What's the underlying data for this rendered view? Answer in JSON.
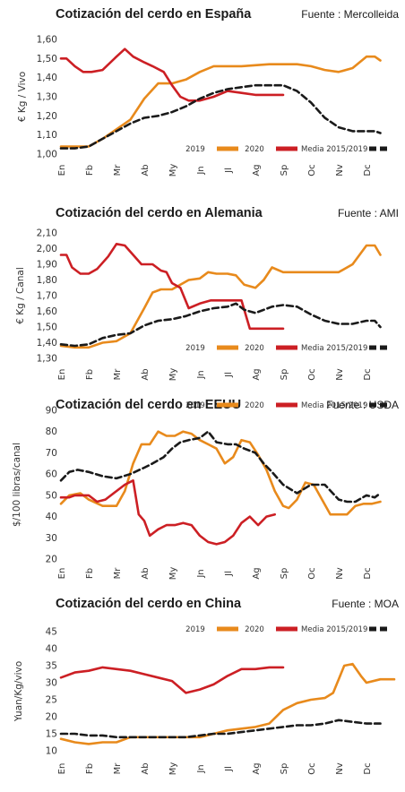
{
  "legend": {
    "label_2019": "2019",
    "label_2020": "2020",
    "label_avg": "Media 2015/2019"
  },
  "colors": {
    "s2019": "#e88a1c",
    "s2020": "#cc1f24",
    "avg": "#1a1a1a"
  },
  "chart_data": [
    {
      "type": "line",
      "title": "Cotización del cerdo en España",
      "source": "Fuente : Mercolleida",
      "ylabel": "€ Kg / Vivo",
      "categories": [
        "En",
        "Fb",
        "Mr",
        "Ab",
        "My",
        "Jn",
        "Jl",
        "Ag",
        "Sp",
        "Oc",
        "Nv",
        "Dc"
      ],
      "ylim": [
        1.0,
        1.6
      ],
      "yticks": [
        "1,00",
        "1,10",
        "1,20",
        "1,30",
        "1,40",
        "1,50",
        "1,60"
      ],
      "xlim": [
        0,
        12
      ],
      "grid": false,
      "legend_position": "bottom-right",
      "series": [
        {
          "name": "2019",
          "color_key": "s2019",
          "dash": false,
          "x": [
            0,
            0.5,
            1,
            1.5,
            2,
            2.5,
            3,
            3.5,
            4,
            4.5,
            5,
            5.5,
            6,
            6.5,
            7,
            7.5,
            8,
            8.5,
            9,
            9.5,
            10,
            10.5,
            11,
            11.3,
            11.5
          ],
          "y": [
            1.04,
            1.04,
            1.04,
            1.08,
            1.13,
            1.18,
            1.29,
            1.37,
            1.37,
            1.39,
            1.43,
            1.46,
            1.46,
            1.46,
            1.465,
            1.47,
            1.47,
            1.47,
            1.46,
            1.44,
            1.43,
            1.45,
            1.51,
            1.51,
            1.49
          ]
        },
        {
          "name": "2020",
          "color_key": "s2020",
          "dash": false,
          "x": [
            0,
            0.2,
            0.5,
            0.8,
            1.1,
            1.5,
            2.0,
            2.3,
            2.6,
            3.0,
            3.3,
            3.7,
            4.0,
            4.3,
            4.6,
            5.0,
            5.5,
            6.0,
            6.5,
            7.0,
            7.5,
            8.0
          ],
          "y": [
            1.5,
            1.5,
            1.46,
            1.43,
            1.43,
            1.44,
            1.51,
            1.55,
            1.51,
            1.48,
            1.46,
            1.43,
            1.36,
            1.3,
            1.28,
            1.28,
            1.3,
            1.33,
            1.32,
            1.31,
            1.31,
            1.31
          ]
        },
        {
          "name": "Media 2015/2019",
          "color_key": "avg",
          "dash": true,
          "x": [
            0,
            0.5,
            1,
            1.5,
            2,
            2.5,
            3,
            3.5,
            4,
            4.5,
            5,
            5.5,
            6,
            6.5,
            7,
            7.5,
            8,
            8.5,
            9,
            9.5,
            10,
            10.5,
            11,
            11.3,
            11.5
          ],
          "y": [
            1.03,
            1.03,
            1.04,
            1.08,
            1.12,
            1.16,
            1.19,
            1.2,
            1.22,
            1.25,
            1.29,
            1.32,
            1.34,
            1.35,
            1.36,
            1.36,
            1.36,
            1.33,
            1.27,
            1.19,
            1.14,
            1.12,
            1.12,
            1.12,
            1.11
          ]
        }
      ]
    },
    {
      "type": "line",
      "title": "Cotización del cerdo en Alemania",
      "source": "Fuente : AMI",
      "ylabel": "€ Kg / Canal",
      "categories": [
        "En",
        "Fb",
        "Mr",
        "Ab",
        "My",
        "Jn",
        "Jl",
        "Ag",
        "Sp",
        "Oc",
        "Nv",
        "Dc"
      ],
      "ylim": [
        1.3,
        2.1
      ],
      "yticks": [
        "1,30",
        "1,40",
        "1,50",
        "1,60",
        "1,70",
        "1,80",
        "1,90",
        "2,00",
        "2,10"
      ],
      "xlim": [
        0,
        12
      ],
      "grid": false,
      "legend_position": "bottom-right",
      "series": [
        {
          "name": "2019",
          "color_key": "s2019",
          "dash": false,
          "x": [
            0,
            0.5,
            1,
            1.5,
            2,
            2.5,
            3,
            3.3,
            3.6,
            4,
            4.3,
            4.6,
            5,
            5.3,
            5.6,
            6,
            6.3,
            6.6,
            7,
            7.3,
            7.6,
            8,
            8.5,
            9,
            9.5,
            10,
            10.5,
            11,
            11.3,
            11.5
          ],
          "y": [
            1.38,
            1.37,
            1.37,
            1.4,
            1.41,
            1.46,
            1.62,
            1.72,
            1.74,
            1.74,
            1.77,
            1.8,
            1.81,
            1.85,
            1.84,
            1.84,
            1.83,
            1.77,
            1.75,
            1.8,
            1.88,
            1.85,
            1.85,
            1.85,
            1.85,
            1.85,
            1.9,
            2.02,
            2.02,
            1.96
          ]
        },
        {
          "name": "2020",
          "color_key": "s2020",
          "dash": false,
          "x": [
            0,
            0.2,
            0.4,
            0.7,
            1.0,
            1.3,
            1.7,
            2.0,
            2.3,
            2.6,
            2.9,
            3.3,
            3.6,
            3.8,
            4.0,
            4.3,
            4.6,
            5.0,
            5.4,
            5.8,
            6.2,
            6.5,
            6.8,
            7.5,
            8.0
          ],
          "y": [
            1.96,
            1.96,
            1.88,
            1.84,
            1.84,
            1.87,
            1.95,
            2.03,
            2.02,
            1.96,
            1.9,
            1.9,
            1.86,
            1.85,
            1.78,
            1.75,
            1.62,
            1.65,
            1.67,
            1.67,
            1.67,
            1.67,
            1.49,
            1.49,
            1.49
          ]
        },
        {
          "name": "Media 2015/2019",
          "color_key": "avg",
          "dash": true,
          "x": [
            0,
            0.5,
            1,
            1.5,
            2,
            2.5,
            3,
            3.5,
            4,
            4.5,
            5,
            5.5,
            6,
            6.3,
            6.6,
            7,
            7.3,
            7.6,
            8,
            8.5,
            9,
            9.5,
            10,
            10.5,
            11,
            11.3,
            11.5
          ],
          "y": [
            1.39,
            1.38,
            1.39,
            1.43,
            1.45,
            1.46,
            1.51,
            1.54,
            1.55,
            1.57,
            1.6,
            1.62,
            1.63,
            1.65,
            1.61,
            1.59,
            1.61,
            1.63,
            1.64,
            1.63,
            1.58,
            1.54,
            1.52,
            1.52,
            1.54,
            1.54,
            1.5
          ]
        }
      ]
    },
    {
      "type": "line",
      "title": "Cotización del cerdo en EEUU",
      "source": "Fuente : USDA",
      "ylabel": "$/100 libras/canal",
      "categories": [
        "En",
        "Fb",
        "Mr",
        "Ab",
        "My",
        "Jn",
        "Jl",
        "Ag",
        "Sp",
        "Oc",
        "Nv",
        "Dc"
      ],
      "ylim": [
        20,
        90
      ],
      "yticks": [
        "20",
        "30",
        "40",
        "50",
        "60",
        "70",
        "80",
        "90"
      ],
      "xlim": [
        0,
        12
      ],
      "grid": false,
      "legend_position": "top-right",
      "series": [
        {
          "name": "2019",
          "color_key": "s2019",
          "dash": false,
          "x": [
            0,
            0.3,
            0.7,
            1,
            1.5,
            2,
            2.3,
            2.6,
            2.9,
            3.2,
            3.5,
            3.8,
            4.1,
            4.4,
            4.7,
            5,
            5.3,
            5.6,
            5.9,
            6.2,
            6.5,
            6.8,
            7.1,
            7.4,
            7.7,
            8,
            8.2,
            8.5,
            8.8,
            9.1,
            9.4,
            9.7,
            10,
            10.3,
            10.6,
            10.9,
            11.2,
            11.5
          ],
          "y": [
            46,
            50,
            51,
            48,
            45,
            45,
            52,
            65,
            74,
            74,
            80,
            78,
            78,
            80,
            79,
            76,
            74,
            72,
            65,
            68,
            76,
            75,
            69,
            62,
            52,
            45,
            44,
            48,
            56,
            55,
            48,
            41,
            41,
            41,
            45,
            46,
            46,
            47
          ]
        },
        {
          "name": "2020",
          "color_key": "s2020",
          "dash": false,
          "x": [
            0,
            0.3,
            0.5,
            0.7,
            1,
            1.3,
            1.6,
            2,
            2.3,
            2.6,
            2.8,
            3.0,
            3.2,
            3.5,
            3.8,
            4.1,
            4.4,
            4.7,
            5.0,
            5.3,
            5.6,
            5.9,
            6.2,
            6.5,
            6.8,
            7.1,
            7.4,
            7.7
          ],
          "y": [
            49,
            49,
            50,
            50,
            50,
            47,
            48,
            52,
            55,
            57,
            41,
            38,
            31,
            34,
            36,
            36,
            37,
            36,
            31,
            28,
            27,
            28,
            31,
            37,
            40,
            36,
            40,
            41
          ]
        },
        {
          "name": "Media 2015/2019",
          "color_key": "avg",
          "dash": true,
          "x": [
            0,
            0.3,
            0.6,
            1,
            1.5,
            2,
            2.5,
            3,
            3.3,
            3.7,
            4.0,
            4.3,
            4.6,
            5.0,
            5.3,
            5.6,
            6.0,
            6.3,
            6.6,
            7.0,
            7.3,
            7.6,
            8,
            8.5,
            9,
            9.5,
            10,
            10.3,
            10.6,
            11,
            11.3,
            11.5
          ],
          "y": [
            57,
            61,
            62,
            61,
            59,
            58,
            60,
            63,
            65,
            68,
            72,
            75,
            76,
            77,
            80,
            75,
            74,
            74,
            72,
            70,
            65,
            61,
            55,
            51,
            55,
            55,
            48,
            47,
            47,
            50,
            49,
            51
          ]
        }
      ]
    },
    {
      "type": "line",
      "title": "Cotización del cerdo en China",
      "source": "Fuente : MOA",
      "ylabel": "Yuan/Kg/vivo",
      "categories": [
        "En",
        "Fb",
        "Mr",
        "Ab",
        "My",
        "Jn",
        "Jl",
        "Ag",
        "Sp",
        "Oc",
        "Nv",
        "Dc"
      ],
      "ylim": [
        10,
        45
      ],
      "yticks": [
        "10",
        "15",
        "20",
        "25",
        "30",
        "35",
        "40",
        "45"
      ],
      "xlim": [
        0,
        12
      ],
      "grid": false,
      "legend_position": "top-right",
      "series": [
        {
          "name": "2019",
          "color_key": "s2019",
          "dash": false,
          "x": [
            0,
            0.5,
            1,
            1.5,
            2,
            2.5,
            3,
            3.5,
            4,
            4.5,
            5,
            5.5,
            6,
            6.5,
            7,
            7.5,
            8,
            8.5,
            9,
            9.5,
            9.8,
            10.0,
            10.2,
            10.5,
            10.8,
            11.0,
            11.5,
            12.0
          ],
          "y": [
            13.5,
            12.5,
            12.0,
            12.5,
            12.5,
            14.0,
            14.0,
            14.0,
            14.0,
            14.0,
            14.0,
            15.0,
            16.0,
            16.5,
            17.0,
            18.0,
            22.0,
            24.0,
            25.0,
            25.5,
            27.0,
            31.0,
            35.0,
            35.5,
            32.0,
            30.0,
            31.0,
            31.0
          ]
        },
        {
          "name": "2020",
          "color_key": "s2020",
          "dash": false,
          "x": [
            0,
            0.5,
            1,
            1.5,
            2,
            2.5,
            3,
            3.5,
            4,
            4.5,
            5,
            5.5,
            6,
            6.5,
            7,
            7.5,
            8
          ],
          "y": [
            31.5,
            33.0,
            33.5,
            34.5,
            34.0,
            33.5,
            32.5,
            31.5,
            30.5,
            27.0,
            28.0,
            29.5,
            32.0,
            34.0,
            34.0,
            34.5,
            34.5
          ]
        },
        {
          "name": "Media 2015/2019",
          "color_key": "avg",
          "dash": true,
          "x": [
            0,
            0.5,
            1,
            1.5,
            2,
            2.5,
            3,
            3.5,
            4,
            4.5,
            5,
            5.5,
            6,
            6.5,
            7,
            7.5,
            8,
            8.5,
            9,
            9.5,
            10,
            10.5,
            11,
            11.5
          ],
          "y": [
            15.0,
            15.0,
            14.5,
            14.5,
            14.0,
            14.0,
            14.0,
            14.0,
            14.0,
            14.0,
            14.5,
            15.0,
            15.0,
            15.5,
            16.0,
            16.5,
            17.0,
            17.5,
            17.5,
            18.0,
            19.0,
            18.5,
            18.0,
            18.0
          ]
        }
      ]
    }
  ]
}
